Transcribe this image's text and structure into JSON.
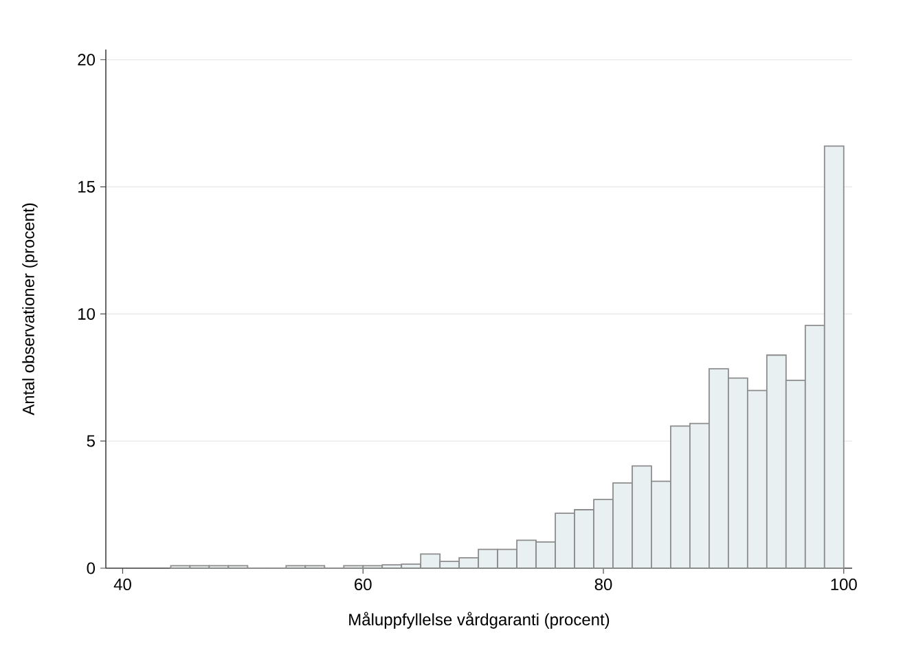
{
  "chart_data": {
    "type": "histogram",
    "xlabel": "Måluppfyllelse vårdgaranti (procent)",
    "ylabel": "Antal observationer (procent)",
    "bins": [
      44,
      45.6,
      47.2,
      48.8,
      50.4,
      52,
      53.6,
      55.2,
      56.8,
      58.4,
      60,
      61.6,
      63.2,
      64.8,
      66.4,
      68,
      69.6,
      71.2,
      72.8,
      74.4,
      76,
      77.6,
      79.2,
      80.8,
      82.4,
      84,
      85.6,
      87.2,
      88.8,
      90.4,
      92,
      93.6,
      95.2,
      96.8,
      98.4,
      100
    ],
    "values": [
      0.1,
      0.1,
      0.1,
      0.1,
      0,
      0,
      0.1,
      0.1,
      0,
      0.1,
      0.1,
      0.13,
      0.16,
      0.56,
      0.27,
      0.41,
      0.74,
      0.74,
      1.1,
      1.03,
      2.16,
      2.3,
      2.7,
      3.35,
      4.02,
      3.42,
      5.59,
      5.69,
      7.84,
      7.48,
      6.99,
      8.38,
      7.39,
      9.55,
      16.6
    ],
    "color": "#e8f0f2",
    "xlim": [
      38.6,
      100.7
    ],
    "ylim": [
      0,
      20.4
    ],
    "xticks": [
      40,
      60,
      80,
      100
    ],
    "yticks": [
      0,
      5,
      10,
      15,
      20
    ],
    "grid": "y"
  }
}
